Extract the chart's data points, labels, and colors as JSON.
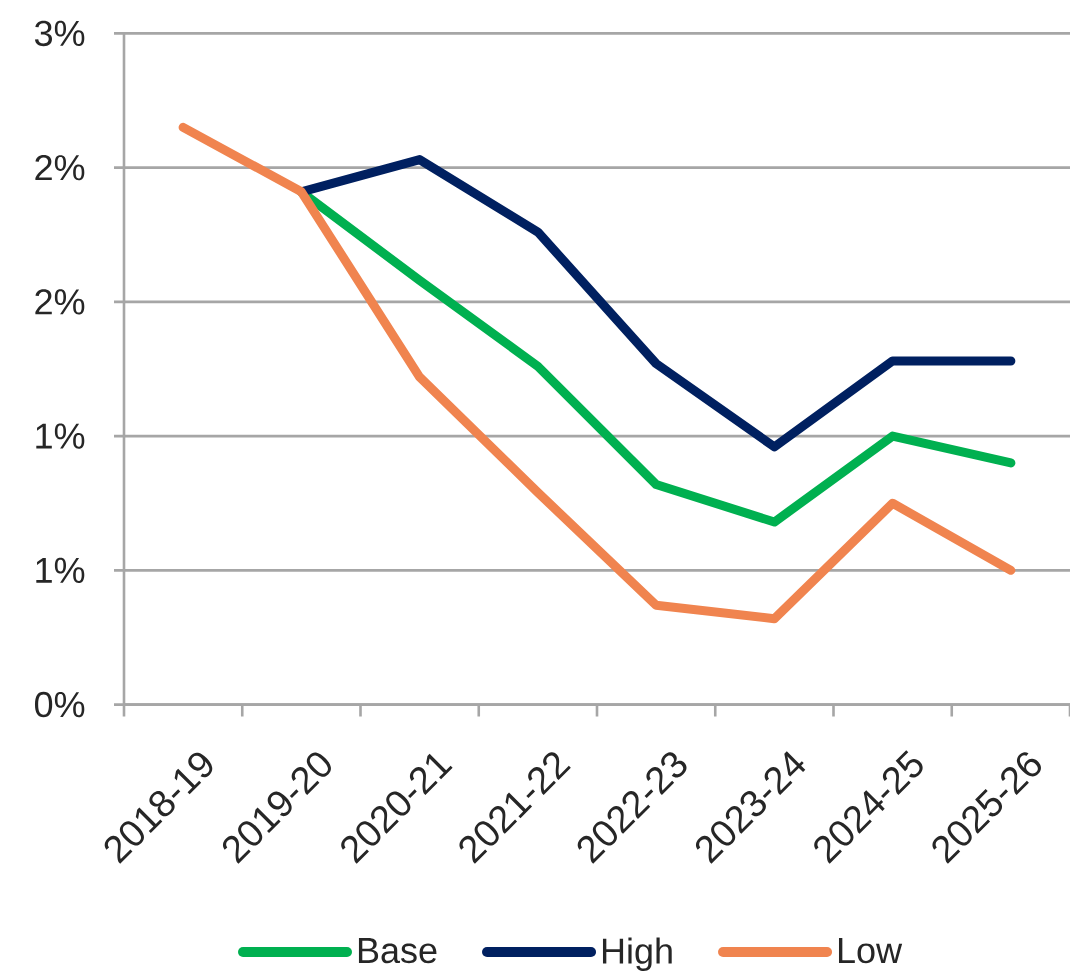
{
  "chart_data": {
    "type": "line",
    "categories": [
      "2018-19",
      "2019-20",
      "2020-21",
      "2021-22",
      "2022-23",
      "2023-24",
      "2024-25",
      "2025-26"
    ],
    "series": [
      {
        "name": "Base",
        "color": "#00b050",
        "values": [
          null,
          1.91,
          1.58,
          1.26,
          0.82,
          0.68,
          1.0,
          0.9
        ]
      },
      {
        "name": "High",
        "color": "#002060",
        "values": [
          null,
          1.91,
          2.03,
          1.76,
          1.27,
          0.96,
          1.28,
          1.28
        ]
      },
      {
        "name": "Low",
        "color": "#f0844f",
        "values": [
          2.15,
          1.91,
          1.22,
          0.79,
          0.37,
          0.32,
          0.75,
          0.5
        ]
      }
    ],
    "ylim": [
      0,
      2.5
    ],
    "yticks": [
      {
        "value": 0,
        "label": "0%"
      },
      {
        "value": 0.5,
        "label": "1%"
      },
      {
        "value": 1.0,
        "label": "1%"
      },
      {
        "value": 1.5,
        "label": "2%"
      },
      {
        "value": 2.0,
        "label": "2%"
      },
      {
        "value": 2.5,
        "label": "3%"
      }
    ],
    "grid": "y",
    "legend": "bottom",
    "marker": "none"
  }
}
